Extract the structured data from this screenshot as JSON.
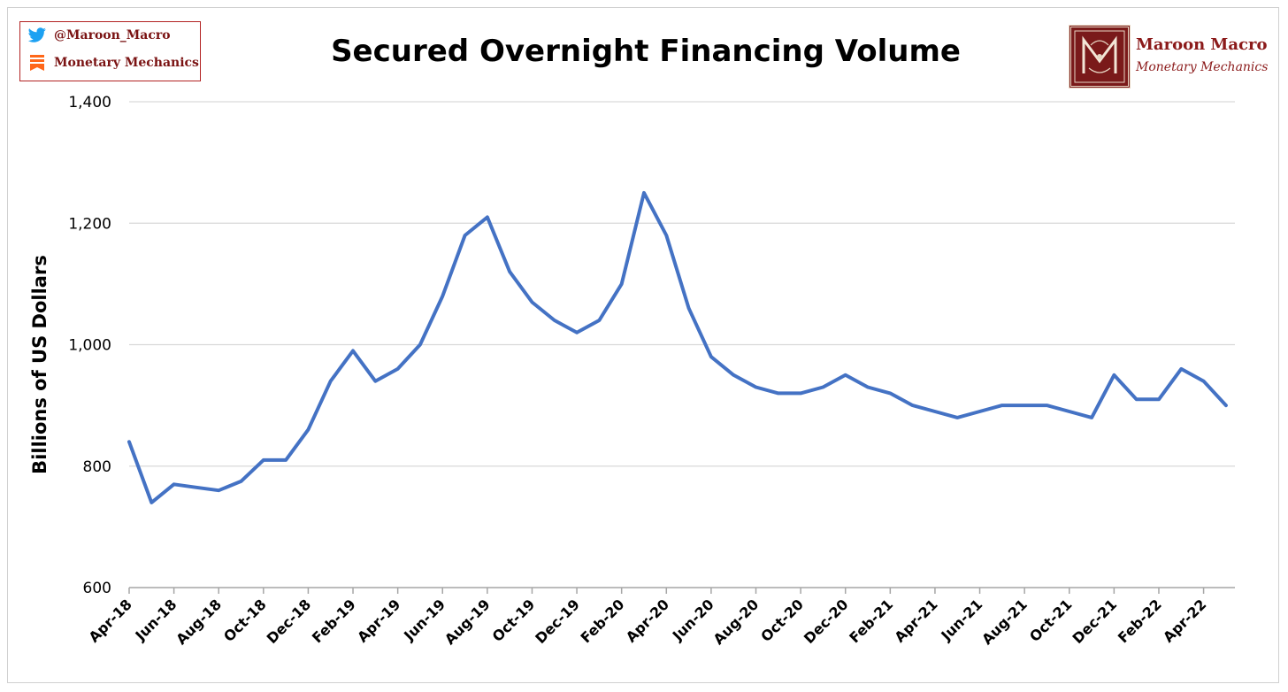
{
  "header": {
    "twitter_handle": "@Maroon_Macro",
    "substack_name": "Monetary Mechanics"
  },
  "brand": {
    "name": "Maroon Macro",
    "subtitle": "Monetary Mechanics"
  },
  "colors": {
    "series": "#4472c4",
    "brand": "#8b1a1a",
    "twitter": "#1da1f2",
    "substack": "#ff6719",
    "grid": "#d9d9d9"
  },
  "icons": [
    "twitter-icon",
    "substack-icon",
    "maroon-macro-logo"
  ],
  "chart_data": {
    "type": "line",
    "title": "Secured Overnight Financing Volume",
    "xlabel": "",
    "ylabel": "Billions of US Dollars",
    "ylim": [
      600,
      1400
    ],
    "yticks": [
      600,
      800,
      1000,
      1200,
      1400
    ],
    "ytick_labels": [
      "600",
      "800",
      "1,000",
      "1,200",
      "1,400"
    ],
    "xlim": [
      "2018-04",
      "2022-05"
    ],
    "xtick_labels": [
      "Apr-18",
      "Jun-18",
      "Aug-18",
      "Oct-18",
      "Dec-18",
      "Feb-19",
      "Apr-19",
      "Jun-19",
      "Aug-19",
      "Oct-19",
      "Dec-19",
      "Feb-20",
      "Apr-20",
      "Jun-20",
      "Aug-20",
      "Oct-20",
      "Dec-20",
      "Feb-21",
      "Apr-21",
      "Jun-21",
      "Aug-21",
      "Oct-21",
      "Dec-21",
      "Feb-22",
      "Apr-22"
    ],
    "grid": "horizontal",
    "legend": "none",
    "series": [
      {
        "x": [
          "2018-04",
          "2018-05",
          "2018-06",
          "2018-07",
          "2018-08",
          "2018-09",
          "2018-10",
          "2018-11",
          "2018-12",
          "2019-01",
          "2019-02",
          "2019-03",
          "2019-04",
          "2019-05",
          "2019-06",
          "2019-07",
          "2019-08",
          "2019-09",
          "2019-10",
          "2019-11",
          "2019-12",
          "2020-01",
          "2020-02",
          "2020-03",
          "2020-04",
          "2020-05",
          "2020-06",
          "2020-07",
          "2020-08",
          "2020-09",
          "2020-10",
          "2020-11",
          "2020-12",
          "2021-01",
          "2021-02",
          "2021-03",
          "2021-04",
          "2021-05",
          "2021-06",
          "2021-07",
          "2021-08",
          "2021-09",
          "2021-10",
          "2021-11",
          "2021-12",
          "2022-01",
          "2022-02",
          "2022-03",
          "2022-04",
          "2022-05"
        ],
        "values": [
          840,
          740,
          770,
          765,
          760,
          775,
          810,
          810,
          860,
          940,
          990,
          940,
          960,
          1000,
          1080,
          1180,
          1210,
          1120,
          1070,
          1040,
          1020,
          1040,
          1100,
          1250,
          1180,
          1060,
          980,
          950,
          930,
          920,
          920,
          930,
          950,
          930,
          920,
          900,
          890,
          880,
          890,
          900,
          900,
          900,
          890,
          880,
          950,
          910,
          910,
          960,
          940,
          900
        ]
      }
    ]
  }
}
